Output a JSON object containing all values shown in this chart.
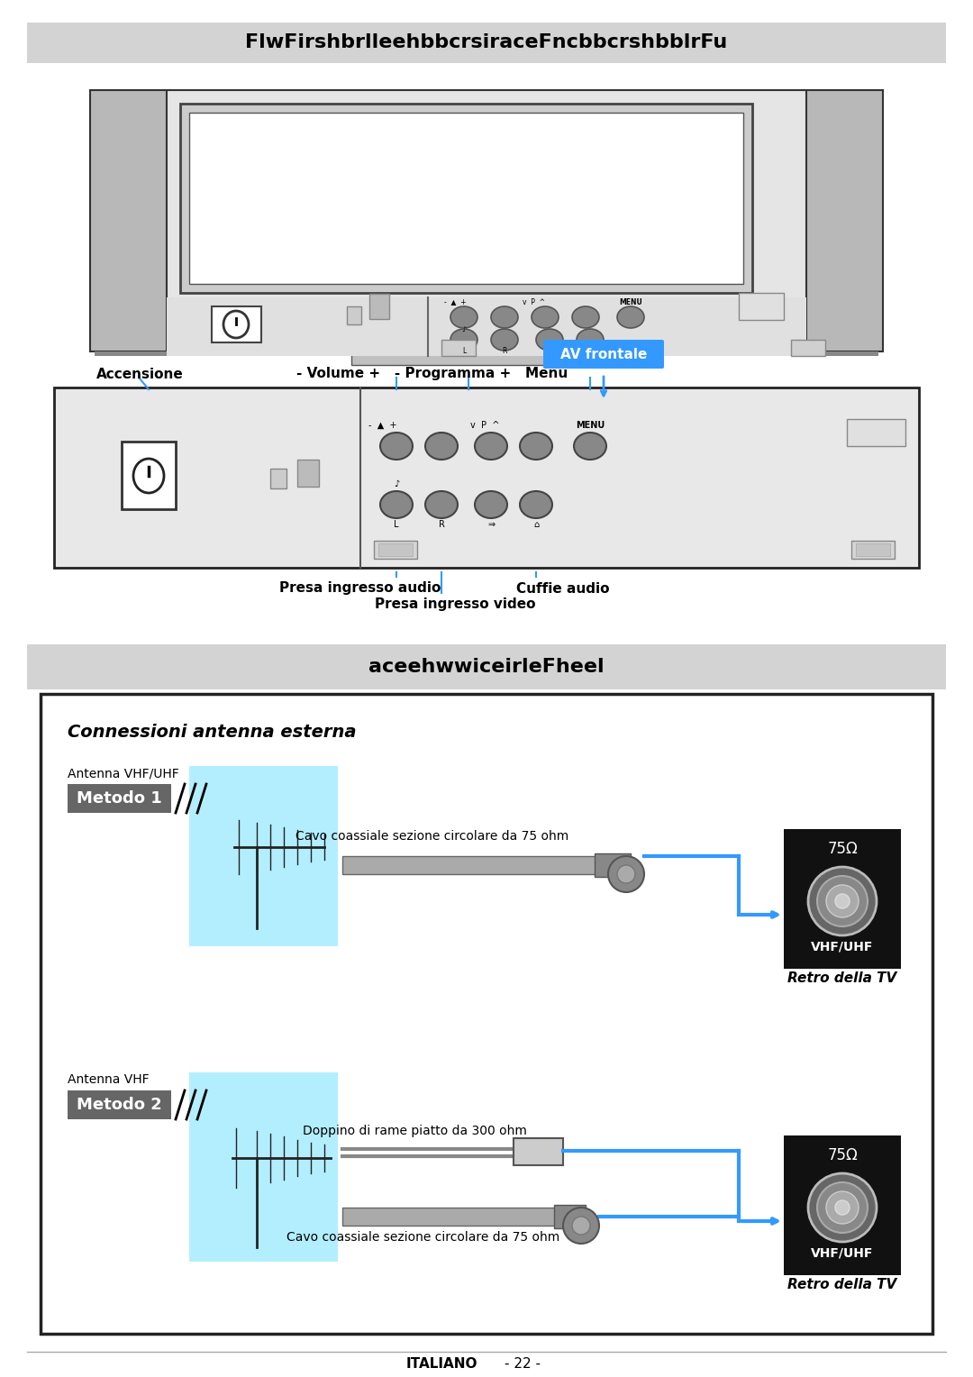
{
  "title1": "FlwFirshbrlleehbbcrsiraceFncbbcrshbblrFu",
  "title2": "aceehwwiceirleFheel",
  "title_bg": "#d3d3d3",
  "page_bg": "#ffffff",
  "label_accensione": "Accensione",
  "label_volume": "- Volume +   - Programma +   Menu",
  "label_presa_audio": "Presa ingresso audio",
  "label_presa_video": "Presa ingresso video",
  "label_cuffie": "Cuffie audio",
  "label_av_frontale": "AV frontale",
  "section2_title": "Connessioni antenna esterna",
  "metodo1_label": "Metodo 1",
  "metodo2_label": "Metodo 2",
  "antenna1_label": "Antenna VHF/UHF",
  "antenna2_label": "Antenna VHF",
  "cable1_label": "Cavo coassiale sezione circolare da 75 ohm",
  "cable2_label": "Doppino di rame piatto da 300 ohm",
  "cable3_label": "Cavo coassiale sezione circolare da 75 ohm",
  "retro_label": "Retro della TV",
  "vhf_uhf": "VHF/UHF",
  "ohm75": "75Ω",
  "italiano": "ITALIANO",
  "page_num": "- 22 -",
  "av_frontale_bg": "#3399ff",
  "metodo_bg": "#777777",
  "connector_bg": "#111111",
  "blue_line": "#3399ff",
  "cyan_bg": "#b3eeff"
}
